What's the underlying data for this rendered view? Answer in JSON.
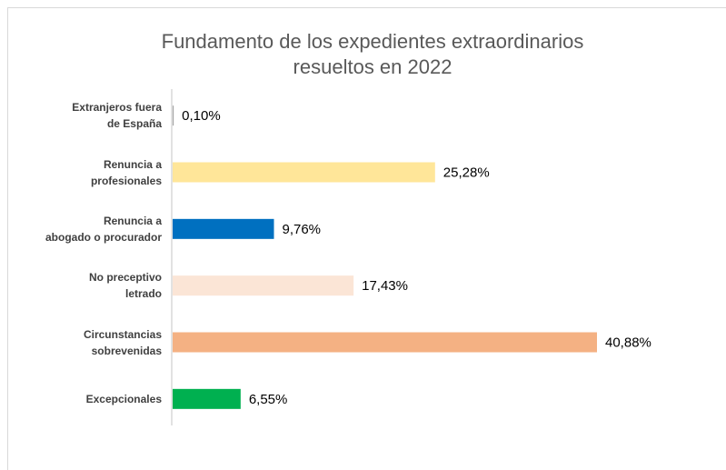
{
  "chart_data": {
    "type": "hbar",
    "title": "Fundamento de los expedientes extraordinarios\nresueltos en 2022",
    "categories": [
      "Extranjeros fuera\nde España",
      "Renuncia a\nprofesionales",
      "Renuncia a\nabogado o procurador",
      "No preceptivo\nletrado",
      "Circunstancias\nsobrevenidas",
      "Excepcionales"
    ],
    "values": [
      0.1,
      25.28,
      9.76,
      17.43,
      40.88,
      6.55
    ],
    "value_labels": [
      "0,10%",
      "25,28%",
      "9,76%",
      "17,43%",
      "40,88%",
      "6,55%"
    ],
    "colors": [
      "#a5a5a5",
      "#ffe699",
      "#0070c0",
      "#fbe5d6",
      "#f4b183",
      "#00b050"
    ]
  }
}
